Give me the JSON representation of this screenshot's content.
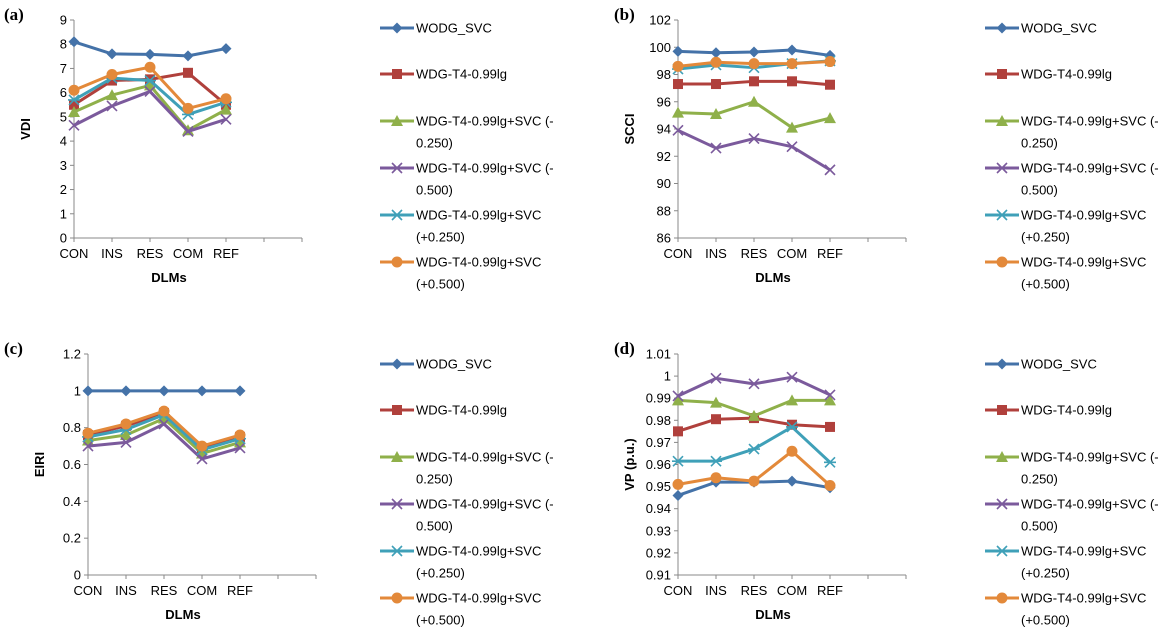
{
  "figure": {
    "colors": {
      "WODG_SVC": "#4472A8",
      "WDG-T4-0.99lg": "#B0403C",
      "WDG-T4-0.99lg+SVC (-0.250)": "#8FB04A",
      "WDG-T4-0.99lg+SVC (-0.500)": "#7B5A9C",
      "WDG-T4-0.99lg+SVC (+0.250)": "#3FA0B8",
      "WDG-T4-0.99lg+SVC (+0.500)": "#E3893A"
    },
    "markers": {
      "WODG_SVC": "diamond",
      "WDG-T4-0.99lg": "square",
      "WDG-T4-0.99lg+SVC (-0.250)": "triangle",
      "WDG-T4-0.99lg+SVC (-0.500)": "x",
      "WDG-T4-0.99lg+SVC (+0.250)": "asterisk",
      "WDG-T4-0.99lg+SVC (+0.500)": "circle"
    }
  },
  "chart_data": [
    {
      "panel": "(a)",
      "type": "line",
      "categories": [
        "CON",
        "INS",
        "RES",
        "COM",
        "REF"
      ],
      "xlabel": "DLMs",
      "ylabel": "VDI",
      "ylim": [
        0,
        9
      ],
      "yticks": [
        "0",
        "1",
        "2",
        "3",
        "4",
        "5",
        "6",
        "7",
        "8",
        "9"
      ],
      "legend_position": "right",
      "series": [
        {
          "name": "WODG_SVC",
          "values": [
            8.1,
            7.6,
            7.58,
            7.52,
            7.82
          ]
        },
        {
          "name": "WDG-T4-0.99lg",
          "values": [
            5.5,
            6.5,
            6.55,
            6.82,
            5.5
          ]
        },
        {
          "name": "WDG-T4-0.99lg+SVC (-0.250)",
          "values": [
            5.2,
            5.9,
            6.3,
            4.45,
            5.3
          ]
        },
        {
          "name": "WDG-T4-0.99lg+SVC (-0.500)",
          "values": [
            4.65,
            5.45,
            6.05,
            4.4,
            4.9
          ]
        },
        {
          "name": "WDG-T4-0.99lg+SVC (+0.250)",
          "values": [
            5.7,
            6.6,
            6.5,
            5.1,
            5.6
          ]
        },
        {
          "name": "WDG-T4-0.99lg+SVC (+0.500)",
          "values": [
            6.1,
            6.75,
            7.05,
            5.35,
            5.75
          ]
        }
      ]
    },
    {
      "panel": "(b)",
      "type": "line",
      "categories": [
        "CON",
        "INS",
        "RES",
        "COM",
        "REF"
      ],
      "xlabel": "DLMs",
      "ylabel": "SCCI",
      "ylim": [
        86,
        102
      ],
      "yticks": [
        "86",
        "88",
        "90",
        "92",
        "94",
        "96",
        "98",
        "100",
        "102"
      ],
      "legend_position": "right",
      "series": [
        {
          "name": "WODG_SVC",
          "values": [
            99.7,
            99.6,
            99.65,
            99.8,
            99.4
          ]
        },
        {
          "name": "WDG-T4-0.99lg",
          "values": [
            97.3,
            97.3,
            97.5,
            97.5,
            97.25
          ]
        },
        {
          "name": "WDG-T4-0.99lg+SVC (-0.250)",
          "values": [
            95.2,
            95.1,
            96.0,
            94.1,
            94.8
          ]
        },
        {
          "name": "WDG-T4-0.99lg+SVC (-0.500)",
          "values": [
            93.9,
            92.6,
            93.3,
            92.7,
            91.0
          ]
        },
        {
          "name": "WDG-T4-0.99lg+SVC (+0.250)",
          "values": [
            98.4,
            98.7,
            98.5,
            98.8,
            99.0
          ]
        },
        {
          "name": "WDG-T4-0.99lg+SVC (+0.500)",
          "values": [
            98.6,
            98.9,
            98.8,
            98.8,
            98.95
          ]
        }
      ]
    },
    {
      "panel": "(c)",
      "type": "line",
      "categories": [
        "CON",
        "INS",
        "RES",
        "COM",
        "REF"
      ],
      "xlabel": "DLMs",
      "ylabel": "EIRI",
      "ylim": [
        0,
        1.2
      ],
      "yticks": [
        "0",
        "0.2",
        "0.4",
        "0.6",
        "0.8",
        "1",
        "1.2"
      ],
      "legend_position": "right",
      "series": [
        {
          "name": "WODG_SVC",
          "values": [
            1,
            1,
            1,
            1,
            1
          ]
        },
        {
          "name": "WDG-T4-0.99lg",
          "values": [
            0.76,
            0.81,
            0.88,
            0.69,
            0.75
          ]
        },
        {
          "name": "WDG-T4-0.99lg+SVC (-0.250)",
          "values": [
            0.73,
            0.76,
            0.85,
            0.66,
            0.72
          ]
        },
        {
          "name": "WDG-T4-0.99lg+SVC (-0.500)",
          "values": [
            0.7,
            0.72,
            0.82,
            0.63,
            0.69
          ]
        },
        {
          "name": "WDG-T4-0.99lg+SVC (+0.250)",
          "values": [
            0.75,
            0.79,
            0.87,
            0.68,
            0.74
          ]
        },
        {
          "name": "WDG-T4-0.99lg+SVC (+0.500)",
          "values": [
            0.77,
            0.82,
            0.89,
            0.7,
            0.76
          ]
        }
      ]
    },
    {
      "panel": "(d)",
      "type": "line",
      "categories": [
        "CON",
        "INS",
        "RES",
        "COM",
        "REF"
      ],
      "xlabel": "DLMs",
      "ylabel": "VP (p.u.)",
      "ylim": [
        0.91,
        1.01
      ],
      "yticks": [
        "0.91",
        "0.92",
        "0.93",
        "0.94",
        "0.95",
        "0.96",
        "0.97",
        "0.98",
        "0.99",
        "1",
        "1.01"
      ],
      "legend_position": "right",
      "series": [
        {
          "name": "WODG_SVC",
          "values": [
            0.946,
            0.952,
            0.952,
            0.9525,
            0.9495
          ]
        },
        {
          "name": "WDG-T4-0.99lg",
          "values": [
            0.975,
            0.9805,
            0.981,
            0.978,
            0.977
          ]
        },
        {
          "name": "WDG-T4-0.99lg+SVC (-0.250)",
          "values": [
            0.989,
            0.988,
            0.982,
            0.989,
            0.989
          ]
        },
        {
          "name": "WDG-T4-0.99lg+SVC (-0.500)",
          "values": [
            0.991,
            0.999,
            0.9965,
            0.9995,
            0.9915
          ]
        },
        {
          "name": "WDG-T4-0.99lg+SVC (+0.250)",
          "values": [
            0.9615,
            0.9615,
            0.967,
            0.977,
            0.961
          ]
        },
        {
          "name": "WDG-T4-0.99lg+SVC (+0.500)",
          "values": [
            0.951,
            0.954,
            0.9525,
            0.966,
            0.9505
          ]
        }
      ]
    }
  ],
  "legend": {
    "entries": [
      {
        "series": "WODG_SVC",
        "lines": [
          "WODG_SVC"
        ]
      },
      {
        "series": "WDG-T4-0.99lg",
        "lines": [
          "WDG-T4-0.99lg"
        ]
      },
      {
        "series": "WDG-T4-0.99lg+SVC (-0.250)",
        "lines": [
          "WDG-T4-0.99lg+SVC (-",
          "0.250)"
        ]
      },
      {
        "series": "WDG-T4-0.99lg+SVC (-0.500)",
        "lines": [
          "WDG-T4-0.99lg+SVC (-",
          "0.500)"
        ]
      },
      {
        "series": "WDG-T4-0.99lg+SVC (+0.250)",
        "lines": [
          "WDG-T4-0.99lg+SVC",
          "(+0.250)"
        ]
      },
      {
        "series": "WDG-T4-0.99lg+SVC (+0.500)",
        "lines": [
          "WDG-T4-0.99lg+SVC",
          "(+0.500)"
        ]
      }
    ]
  }
}
